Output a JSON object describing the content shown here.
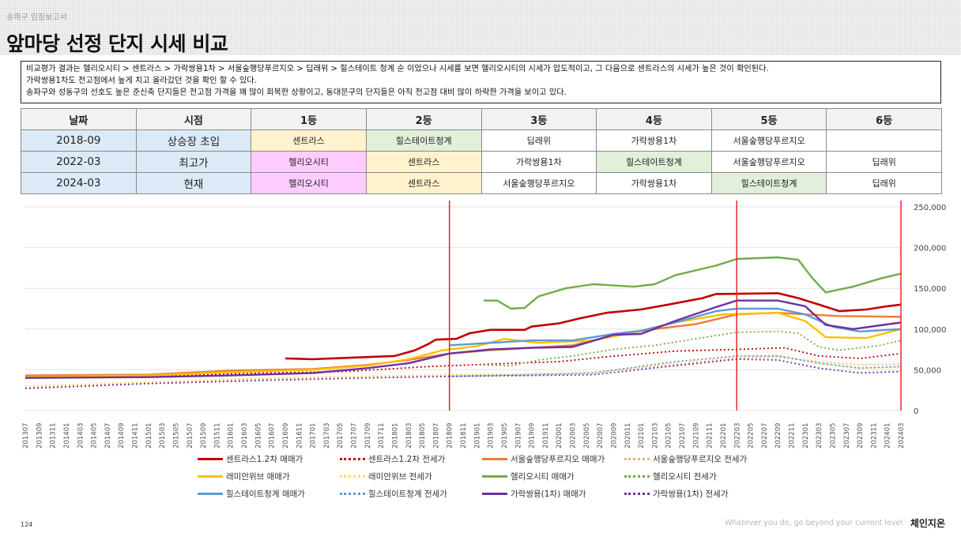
{
  "header": {
    "subtitle": "송파구 임장보고서",
    "title": "앞마당 선정 단지 시세 비교"
  },
  "description": [
    "비교평가 결과는 헬리오시티 > 센트라스 > 가락쌍용1차 > 서울숲행당푸르지오 > 딥래위 > 힐스테이트 청계 순 이었으나 시세를 보면 헬리오시티의 시세가 압도적이고, 그 다음으로 센트라스의 시세가 높은 것이 확인된다.",
    "가락쌍용1차도 전고점에서 높게 치고 올라갔던 것을 확인 할 수 있다.",
    "송파구와 성동구의 선호도 높은 준신축 단지들은 전고점 가격을 꽤 많이 회복한 상황이고, 동대문구의 단지들은 아직 전고점 대비 많이 하락한 가격을 보이고 있다."
  ],
  "rank_table": {
    "headers": [
      "날짜",
      "시점",
      "1등",
      "2등",
      "3등",
      "4등",
      "5등",
      "6등"
    ],
    "rows": [
      {
        "date": "2018-09",
        "point": "상승장 초입",
        "ranks": [
          "센트라스",
          "힐스테이트청계",
          "딥래위",
          "가락쌍용1차",
          "서울숲행당푸르지오",
          ""
        ]
      },
      {
        "date": "2022-03",
        "point": "최고가",
        "ranks": [
          "헬리오시티",
          "센트라스",
          "가락쌍용1차",
          "힐스테이트청계",
          "서울숲행당푸르지오",
          "딥래위"
        ]
      },
      {
        "date": "2024-03",
        "point": "현재",
        "ranks": [
          "헬리오시티",
          "센트라스",
          "서울숲행당푸르지오",
          "가락쌍용1차",
          "힐스테이트청계",
          "딥래위"
        ]
      }
    ],
    "complex_colors": {
      "헬리오시티": "#ffccff",
      "센트라스": "#fff2cc",
      "힐스테이트청계": "#e2efda"
    }
  },
  "chart_data": {
    "type": "line",
    "y_ticks": [
      "0",
      "50,000",
      "100,000",
      "150,000",
      "200,000",
      "250,000"
    ],
    "ylim": [
      0,
      250000
    ],
    "y_axis_side": "right",
    "grid": "horizontal",
    "x_start": "2013-07",
    "x_end": "2024-03",
    "x_step_months": 1,
    "x_tick_every_months": 2,
    "markers": [
      "2018-09",
      "2022-03",
      "2024-03"
    ],
    "marker_color": "#e0262b",
    "series": [
      {
        "name": "센트라스1.2차 매매가",
        "color": "#c00000",
        "dash": false,
        "width": 2.6,
        "points": [
          [
            "2016-09",
            64000
          ],
          [
            "2017-01",
            63000
          ],
          [
            "2017-07",
            65000
          ],
          [
            "2018-01",
            67000
          ],
          [
            "2018-04",
            74000
          ],
          [
            "2018-06",
            82000
          ],
          [
            "2018-07",
            87000
          ],
          [
            "2018-10",
            88000
          ],
          [
            "2018-12",
            95000
          ],
          [
            "2019-03",
            99000
          ],
          [
            "2019-08",
            99000
          ],
          [
            "2019-09",
            103000
          ],
          [
            "2020-01",
            107000
          ],
          [
            "2020-04",
            113000
          ],
          [
            "2020-08",
            120000
          ],
          [
            "2021-01",
            124000
          ],
          [
            "2021-05",
            130000
          ],
          [
            "2021-10",
            138000
          ],
          [
            "2021-12",
            143000
          ],
          [
            "2022-09",
            144000
          ],
          [
            "2022-12",
            138000
          ],
          [
            "2023-03",
            130000
          ],
          [
            "2023-06",
            122000
          ],
          [
            "2023-10",
            124000
          ],
          [
            "2024-01",
            128000
          ],
          [
            "2024-03",
            130000
          ]
        ]
      },
      {
        "name": "센트라스1.2차 전세가",
        "color": "#c00000",
        "dash": true,
        "width": 1.8,
        "points": [
          [
            "2013-07",
            40000
          ],
          [
            "2015-01",
            42000
          ],
          [
            "2016-06",
            46000
          ],
          [
            "2017-06",
            48000
          ],
          [
            "2018-06",
            54000
          ],
          [
            "2019-06",
            58000
          ],
          [
            "2020-01",
            60000
          ],
          [
            "2020-08",
            66000
          ],
          [
            "2021-06",
            73000
          ],
          [
            "2022-03",
            75000
          ],
          [
            "2022-10",
            77000
          ],
          [
            "2023-03",
            67000
          ],
          [
            "2023-09",
            64000
          ],
          [
            "2024-03",
            70000
          ]
        ]
      },
      {
        "name": "서울숲행당푸르지오 매매가",
        "color": "#ed7d31",
        "dash": false,
        "width": 2.4,
        "points": [
          [
            "2013-07",
            43000
          ],
          [
            "2015-01",
            44000
          ],
          [
            "2016-01",
            49000
          ],
          [
            "2017-01",
            51000
          ],
          [
            "2017-09",
            56000
          ],
          [
            "2018-03",
            62000
          ],
          [
            "2018-09",
            70000
          ],
          [
            "2019-03",
            74000
          ],
          [
            "2020-03",
            80000
          ],
          [
            "2020-09",
            92000
          ],
          [
            "2021-03",
            100000
          ],
          [
            "2021-09",
            106000
          ],
          [
            "2022-03",
            118000
          ],
          [
            "2022-09",
            120000
          ],
          [
            "2023-01",
            118000
          ],
          [
            "2023-06",
            116000
          ],
          [
            "2024-03",
            115000
          ]
        ]
      },
      {
        "name": "서울숲행당푸르지오 전세가",
        "color": "#f4b183",
        "dash": true,
        "width": 1.8,
        "points": [
          [
            "2013-07",
            28000
          ],
          [
            "2015-01",
            34000
          ],
          [
            "2016-06",
            39000
          ],
          [
            "2017-09",
            42000
          ],
          [
            "2018-09",
            44000
          ],
          [
            "2019-09",
            45000
          ],
          [
            "2020-06",
            47000
          ],
          [
            "2021-06",
            56000
          ],
          [
            "2022-03",
            64000
          ],
          [
            "2022-09",
            66000
          ],
          [
            "2023-03",
            60000
          ],
          [
            "2023-09",
            56000
          ],
          [
            "2024-03",
            57000
          ]
        ]
      },
      {
        "name": "래미안위브 매매가",
        "color": "#ffc000",
        "dash": false,
        "width": 2.4,
        "points": [
          [
            "2013-07",
            41000
          ],
          [
            "2015-01",
            43000
          ],
          [
            "2016-01",
            47000
          ],
          [
            "2017-01",
            50000
          ],
          [
            "2017-09",
            55000
          ],
          [
            "2018-03",
            63000
          ],
          [
            "2018-08",
            74000
          ],
          [
            "2019-01",
            79000
          ],
          [
            "2019-05",
            88000
          ],
          [
            "2019-10",
            83000
          ],
          [
            "2020-06",
            86000
          ],
          [
            "2020-12",
            96000
          ],
          [
            "2021-06",
            108000
          ],
          [
            "2022-01",
            118000
          ],
          [
            "2022-09",
            120000
          ],
          [
            "2023-01",
            110000
          ],
          [
            "2023-04",
            90000
          ],
          [
            "2023-10",
            89000
          ],
          [
            "2024-03",
            100000
          ]
        ]
      },
      {
        "name": "래미안위브 전세가",
        "color": "#ffd966",
        "dash": true,
        "width": 1.8,
        "points": [
          [
            "2013-07",
            30000
          ],
          [
            "2015-01",
            35000
          ],
          [
            "2016-06",
            40000
          ],
          [
            "2017-09",
            42000
          ],
          [
            "2018-09",
            44000
          ],
          [
            "2019-09",
            45000
          ],
          [
            "2020-06",
            47000
          ],
          [
            "2021-06",
            58000
          ],
          [
            "2022-03",
            66000
          ],
          [
            "2022-09",
            68000
          ],
          [
            "2023-03",
            58000
          ],
          [
            "2023-09",
            52000
          ],
          [
            "2024-03",
            53000
          ]
        ]
      },
      {
        "name": "헬리오시티 매매가",
        "color": "#70ad47",
        "dash": false,
        "width": 2.4,
        "points": [
          [
            "2019-02",
            135000
          ],
          [
            "2019-04",
            135000
          ],
          [
            "2019-06",
            125000
          ],
          [
            "2019-08",
            126000
          ],
          [
            "2019-10",
            140000
          ],
          [
            "2020-02",
            150000
          ],
          [
            "2020-06",
            155000
          ],
          [
            "2020-12",
            152000
          ],
          [
            "2021-03",
            155000
          ],
          [
            "2021-06",
            166000
          ],
          [
            "2021-12",
            178000
          ],
          [
            "2022-03",
            186000
          ],
          [
            "2022-09",
            188000
          ],
          [
            "2022-12",
            185000
          ],
          [
            "2023-02",
            163000
          ],
          [
            "2023-04",
            145000
          ],
          [
            "2023-08",
            152000
          ],
          [
            "2023-12",
            162000
          ],
          [
            "2024-03",
            168000
          ]
        ]
      },
      {
        "name": "헬리오시티 전세가",
        "color": "#70ad47",
        "dash": true,
        "width": 1.8,
        "points": [
          [
            "2019-02",
            56000
          ],
          [
            "2019-06",
            55000
          ],
          [
            "2019-10",
            62000
          ],
          [
            "2020-03",
            67000
          ],
          [
            "2020-09",
            75000
          ],
          [
            "2021-03",
            80000
          ],
          [
            "2021-09",
            88000
          ],
          [
            "2022-03",
            96000
          ],
          [
            "2022-09",
            97000
          ],
          [
            "2022-12",
            95000
          ],
          [
            "2023-03",
            78000
          ],
          [
            "2023-06",
            74000
          ],
          [
            "2023-12",
            80000
          ],
          [
            "2024-03",
            86000
          ]
        ]
      },
      {
        "name": "힐스테이트청계 매매가",
        "color": "#5b9bd5",
        "dash": false,
        "width": 2.4,
        "points": [
          [
            "2018-09",
            80000
          ],
          [
            "2019-03",
            83000
          ],
          [
            "2019-09",
            86000
          ],
          [
            "2020-03",
            86000
          ],
          [
            "2020-09",
            94000
          ],
          [
            "2021-01",
            98000
          ],
          [
            "2021-06",
            108000
          ],
          [
            "2021-12",
            122000
          ],
          [
            "2022-03",
            125000
          ],
          [
            "2022-09",
            125000
          ],
          [
            "2023-01",
            118000
          ],
          [
            "2023-05",
            103000
          ],
          [
            "2023-09",
            97000
          ],
          [
            "2024-03",
            100000
          ]
        ]
      },
      {
        "name": "힐스테이트청계 전세가",
        "color": "#5b9bd5",
        "dash": true,
        "width": 1.8,
        "points": [
          [
            "2018-09",
            42000
          ],
          [
            "2019-09",
            44000
          ],
          [
            "2020-06",
            46000
          ],
          [
            "2021-06",
            60000
          ],
          [
            "2022-03",
            67000
          ],
          [
            "2022-09",
            67000
          ],
          [
            "2023-03",
            58000
          ],
          [
            "2023-09",
            52000
          ],
          [
            "2024-03",
            54000
          ]
        ]
      },
      {
        "name": "가락쌍용(1차) 매매가",
        "color": "#7030a0",
        "dash": false,
        "width": 2.4,
        "points": [
          [
            "2013-07",
            40000
          ],
          [
            "2015-01",
            41000
          ],
          [
            "2016-01",
            43000
          ],
          [
            "2017-01",
            46000
          ],
          [
            "2017-09",
            52000
          ],
          [
            "2018-03",
            58000
          ],
          [
            "2018-09",
            70000
          ],
          [
            "2019-03",
            75000
          ],
          [
            "2019-09",
            77000
          ],
          [
            "2020-03",
            78000
          ],
          [
            "2020-09",
            93000
          ],
          [
            "2021-01",
            94000
          ],
          [
            "2021-06",
            110000
          ],
          [
            "2021-12",
            127000
          ],
          [
            "2022-03",
            135000
          ],
          [
            "2022-09",
            135000
          ],
          [
            "2023-01",
            128000
          ],
          [
            "2023-04",
            105000
          ],
          [
            "2023-08",
            100000
          ],
          [
            "2024-03",
            108000
          ]
        ]
      },
      {
        "name": "가락쌍용(1차) 전세가",
        "color": "#7030a0",
        "dash": true,
        "width": 1.8,
        "points": [
          [
            "2013-07",
            27000
          ],
          [
            "2015-01",
            33000
          ],
          [
            "2016-06",
            37000
          ],
          [
            "2017-09",
            40000
          ],
          [
            "2018-09",
            42000
          ],
          [
            "2019-09",
            43000
          ],
          [
            "2020-06",
            44000
          ],
          [
            "2021-06",
            55000
          ],
          [
            "2022-03",
            63000
          ],
          [
            "2022-09",
            62000
          ],
          [
            "2023-03",
            52000
          ],
          [
            "2023-09",
            46000
          ],
          [
            "2024-03",
            48000
          ]
        ]
      }
    ]
  },
  "footer": {
    "page": "124",
    "tagline": "Whatever you do, go beyond your current level",
    "brand": "체인지온"
  }
}
